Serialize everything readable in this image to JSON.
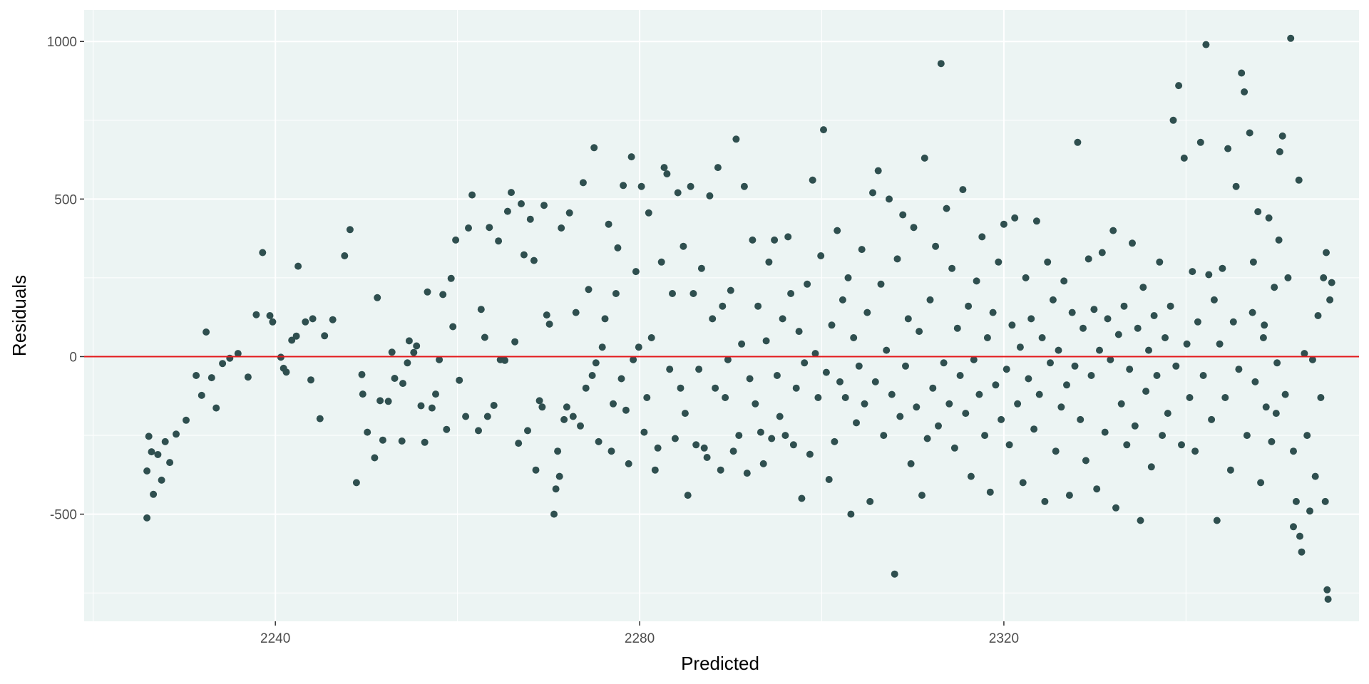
{
  "chart_data": {
    "type": "scatter",
    "title": "",
    "xlabel": "Predicted",
    "ylabel": "Residuals",
    "xlim": [
      2219,
      2359
    ],
    "ylim": [
      -840,
      1100
    ],
    "x_ticks": [
      2240,
      2280,
      2320
    ],
    "y_ticks": [
      -500,
      0,
      500,
      1000
    ],
    "x_tick_labels": [
      "2240",
      "2280",
      "2320"
    ],
    "y_tick_labels": [
      "-500",
      "0",
      "500",
      "1000"
    ],
    "grid": true,
    "reference_line": {
      "y": 0,
      "color": "#e31a1c"
    },
    "colors": {
      "panel": "#ecf4f3",
      "grid": "#ffffff",
      "point": "#2f4f4f",
      "reference": "#e31a1c"
    },
    "points": [
      [
        2225.9,
        -512
      ],
      [
        2225.9,
        -363
      ],
      [
        2226.1,
        -253
      ],
      [
        2226.4,
        -302
      ],
      [
        2226.6,
        -437
      ],
      [
        2227.1,
        -311
      ],
      [
        2227.5,
        -392
      ],
      [
        2227.9,
        -270
      ],
      [
        2228.4,
        -336
      ],
      [
        2229.1,
        -246
      ],
      [
        2230.2,
        -202
      ],
      [
        2231.3,
        -60
      ],
      [
        2231.9,
        -123
      ],
      [
        2232.4,
        78
      ],
      [
        2233.0,
        -67
      ],
      [
        2233.5,
        -163
      ],
      [
        2234.2,
        -22
      ],
      [
        2235.0,
        -5
      ],
      [
        2235.9,
        10
      ],
      [
        2237.0,
        -65
      ],
      [
        2237.9,
        133
      ],
      [
        2238.6,
        330
      ],
      [
        2239.4,
        130
      ],
      [
        2239.7,
        110
      ],
      [
        2240.6,
        -2
      ],
      [
        2240.9,
        -37
      ],
      [
        2241.2,
        -49
      ],
      [
        2241.8,
        52
      ],
      [
        2242.3,
        65
      ],
      [
        2242.5,
        287
      ],
      [
        2243.3,
        110
      ],
      [
        2243.9,
        -74
      ],
      [
        2244.1,
        120
      ],
      [
        2244.9,
        -197
      ],
      [
        2245.4,
        66
      ],
      [
        2246.3,
        117
      ],
      [
        2247.6,
        320
      ],
      [
        2248.2,
        403
      ],
      [
        2248.9,
        -400
      ],
      [
        2249.5,
        -57
      ],
      [
        2249.6,
        -119
      ],
      [
        2250.1,
        -240
      ],
      [
        2250.9,
        -321
      ],
      [
        2251.2,
        187
      ],
      [
        2251.5,
        -140
      ],
      [
        2251.8,
        -265
      ],
      [
        2252.4,
        -142
      ],
      [
        2252.8,
        14
      ],
      [
        2253.1,
        -69
      ],
      [
        2253.9,
        -268
      ],
      [
        2254.0,
        -85
      ],
      [
        2254.5,
        -20
      ],
      [
        2254.7,
        50
      ],
      [
        2255.2,
        13
      ],
      [
        2255.5,
        34
      ],
      [
        2256.0,
        -156
      ],
      [
        2256.4,
        -272
      ],
      [
        2256.7,
        205
      ],
      [
        2257.2,
        -163
      ],
      [
        2257.6,
        -119
      ],
      [
        2258.0,
        -10
      ],
      [
        2258.4,
        197
      ],
      [
        2258.8,
        -231
      ],
      [
        2259.3,
        248
      ],
      [
        2259.5,
        95
      ],
      [
        2259.8,
        370
      ],
      [
        2260.2,
        -75
      ],
      [
        2260.9,
        -190
      ],
      [
        2261.2,
        408
      ],
      [
        2261.6,
        513
      ],
      [
        2262.3,
        -235
      ],
      [
        2262.6,
        150
      ],
      [
        2263.0,
        61
      ],
      [
        2263.3,
        -190
      ],
      [
        2263.5,
        410
      ],
      [
        2264.0,
        -155
      ],
      [
        2264.5,
        367
      ],
      [
        2264.7,
        -10
      ],
      [
        2265.2,
        -12
      ],
      [
        2265.5,
        461
      ],
      [
        2265.9,
        521
      ],
      [
        2266.3,
        47
      ],
      [
        2266.7,
        -275
      ],
      [
        2267.0,
        485
      ],
      [
        2267.3,
        323
      ],
      [
        2267.7,
        -235
      ],
      [
        2268.0,
        436
      ],
      [
        2268.4,
        305
      ],
      [
        2268.6,
        -360
      ],
      [
        2269.0,
        -140
      ],
      [
        2269.3,
        -160
      ],
      [
        2269.5,
        480
      ],
      [
        2269.8,
        132
      ],
      [
        2270.1,
        103
      ],
      [
        2270.6,
        -500
      ],
      [
        2270.8,
        -420
      ],
      [
        2271.0,
        -300
      ],
      [
        2271.2,
        -380
      ],
      [
        2271.4,
        408
      ],
      [
        2271.7,
        -200
      ],
      [
        2272.0,
        -160
      ],
      [
        2272.3,
        456
      ],
      [
        2272.7,
        -190
      ],
      [
        2273.0,
        140
      ],
      [
        2273.5,
        -220
      ],
      [
        2273.8,
        552
      ],
      [
        2274.1,
        -100
      ],
      [
        2274.4,
        213
      ],
      [
        2274.8,
        -60
      ],
      [
        2275.0,
        663
      ],
      [
        2275.2,
        -20
      ],
      [
        2275.5,
        -270
      ],
      [
        2275.9,
        30
      ],
      [
        2276.2,
        120
      ],
      [
        2276.6,
        420
      ],
      [
        2276.9,
        -300
      ],
      [
        2277.1,
        -150
      ],
      [
        2277.4,
        200
      ],
      [
        2277.6,
        345
      ],
      [
        2278.0,
        -70
      ],
      [
        2278.2,
        543
      ],
      [
        2278.5,
        -170
      ],
      [
        2278.8,
        -340
      ],
      [
        2279.1,
        634
      ],
      [
        2279.3,
        -10
      ],
      [
        2279.6,
        270
      ],
      [
        2279.9,
        30
      ],
      [
        2280.2,
        540
      ],
      [
        2280.5,
        -240
      ],
      [
        2280.8,
        -130
      ],
      [
        2281.0,
        456
      ],
      [
        2281.3,
        60
      ],
      [
        2281.7,
        -360
      ],
      [
        2282.0,
        -290
      ],
      [
        2282.4,
        300
      ],
      [
        2282.7,
        600
      ],
      [
        2283.0,
        580
      ],
      [
        2283.3,
        -40
      ],
      [
        2283.6,
        200
      ],
      [
        2283.9,
        -260
      ],
      [
        2284.2,
        520
      ],
      [
        2284.5,
        -100
      ],
      [
        2284.8,
        350
      ],
      [
        2285.0,
        -180
      ],
      [
        2285.3,
        -440
      ],
      [
        2285.6,
        540
      ],
      [
        2285.9,
        200
      ],
      [
        2286.2,
        -280
      ],
      [
        2286.5,
        -40
      ],
      [
        2286.8,
        280
      ],
      [
        2287.1,
        -290
      ],
      [
        2287.4,
        -320
      ],
      [
        2287.7,
        510
      ],
      [
        2288.0,
        120
      ],
      [
        2288.3,
        -100
      ],
      [
        2288.6,
        600
      ],
      [
        2288.9,
        -360
      ],
      [
        2289.1,
        160
      ],
      [
        2289.4,
        -130
      ],
      [
        2289.7,
        -10
      ],
      [
        2290.0,
        210
      ],
      [
        2290.3,
        -300
      ],
      [
        2290.6,
        690
      ],
      [
        2290.9,
        -250
      ],
      [
        2291.2,
        40
      ],
      [
        2291.5,
        540
      ],
      [
        2291.8,
        -370
      ],
      [
        2292.1,
        -70
      ],
      [
        2292.4,
        370
      ],
      [
        2292.7,
        -150
      ],
      [
        2293.0,
        160
      ],
      [
        2293.3,
        -240
      ],
      [
        2293.6,
        -340
      ],
      [
        2293.9,
        50
      ],
      [
        2294.2,
        300
      ],
      [
        2294.5,
        -260
      ],
      [
        2294.8,
        370
      ],
      [
        2295.1,
        -60
      ],
      [
        2295.4,
        -190
      ],
      [
        2295.7,
        120
      ],
      [
        2296.0,
        -250
      ],
      [
        2296.3,
        380
      ],
      [
        2296.6,
        200
      ],
      [
        2296.9,
        -280
      ],
      [
        2297.2,
        -100
      ],
      [
        2297.5,
        80
      ],
      [
        2297.8,
        -450
      ],
      [
        2298.1,
        -20
      ],
      [
        2298.4,
        230
      ],
      [
        2298.7,
        -310
      ],
      [
        2299.0,
        560
      ],
      [
        2299.3,
        10
      ],
      [
        2299.6,
        -130
      ],
      [
        2299.9,
        320
      ],
      [
        2300.2,
        720
      ],
      [
        2300.5,
        -50
      ],
      [
        2300.8,
        -390
      ],
      [
        2301.1,
        100
      ],
      [
        2301.4,
        -270
      ],
      [
        2301.7,
        400
      ],
      [
        2302.0,
        -80
      ],
      [
        2302.3,
        180
      ],
      [
        2302.6,
        -130
      ],
      [
        2302.9,
        250
      ],
      [
        2303.2,
        -500
      ],
      [
        2303.5,
        60
      ],
      [
        2303.8,
        -210
      ],
      [
        2304.1,
        -30
      ],
      [
        2304.4,
        340
      ],
      [
        2304.7,
        -150
      ],
      [
        2305.0,
        140
      ],
      [
        2305.3,
        -460
      ],
      [
        2305.6,
        520
      ],
      [
        2305.9,
        -80
      ],
      [
        2306.2,
        590
      ],
      [
        2306.5,
        230
      ],
      [
        2306.8,
        -250
      ],
      [
        2307.1,
        20
      ],
      [
        2307.4,
        500
      ],
      [
        2307.7,
        -120
      ],
      [
        2308.0,
        -690
      ],
      [
        2308.3,
        310
      ],
      [
        2308.6,
        -190
      ],
      [
        2308.9,
        450
      ],
      [
        2309.2,
        -30
      ],
      [
        2309.5,
        120
      ],
      [
        2309.8,
        -340
      ],
      [
        2310.1,
        410
      ],
      [
        2310.4,
        -160
      ],
      [
        2310.7,
        80
      ],
      [
        2311.0,
        -440
      ],
      [
        2311.3,
        630
      ],
      [
        2311.6,
        -260
      ],
      [
        2311.9,
        180
      ],
      [
        2312.2,
        -100
      ],
      [
        2312.5,
        350
      ],
      [
        2312.8,
        -220
      ],
      [
        2313.1,
        930
      ],
      [
        2313.4,
        -20
      ],
      [
        2313.7,
        470
      ],
      [
        2314.0,
        -150
      ],
      [
        2314.3,
        280
      ],
      [
        2314.6,
        -290
      ],
      [
        2314.9,
        90
      ],
      [
        2315.2,
        -60
      ],
      [
        2315.5,
        530
      ],
      [
        2315.8,
        -180
      ],
      [
        2316.1,
        160
      ],
      [
        2316.4,
        -380
      ],
      [
        2316.7,
        -10
      ],
      [
        2317.0,
        240
      ],
      [
        2317.3,
        -120
      ],
      [
        2317.6,
        380
      ],
      [
        2317.9,
        -250
      ],
      [
        2318.2,
        60
      ],
      [
        2318.5,
        -430
      ],
      [
        2318.8,
        140
      ],
      [
        2319.1,
        -90
      ],
      [
        2319.4,
        300
      ],
      [
        2319.7,
        -200
      ],
      [
        2320.0,
        420
      ],
      [
        2320.3,
        -40
      ],
      [
        2320.6,
        -280
      ],
      [
        2320.9,
        100
      ],
      [
        2321.2,
        440
      ],
      [
        2321.5,
        -150
      ],
      [
        2321.8,
        30
      ],
      [
        2322.1,
        -400
      ],
      [
        2322.4,
        250
      ],
      [
        2322.7,
        -70
      ],
      [
        2323.0,
        120
      ],
      [
        2323.3,
        -230
      ],
      [
        2323.6,
        430
      ],
      [
        2323.9,
        -120
      ],
      [
        2324.2,
        60
      ],
      [
        2324.5,
        -460
      ],
      [
        2324.8,
        300
      ],
      [
        2325.1,
        -20
      ],
      [
        2325.4,
        180
      ],
      [
        2325.7,
        -300
      ],
      [
        2326.0,
        20
      ],
      [
        2326.3,
        -160
      ],
      [
        2326.6,
        240
      ],
      [
        2326.9,
        -90
      ],
      [
        2327.2,
        -440
      ],
      [
        2327.5,
        140
      ],
      [
        2327.8,
        -30
      ],
      [
        2328.1,
        680
      ],
      [
        2328.4,
        -200
      ],
      [
        2328.7,
        90
      ],
      [
        2329.0,
        -330
      ],
      [
        2329.3,
        310
      ],
      [
        2329.6,
        -60
      ],
      [
        2329.9,
        150
      ],
      [
        2330.2,
        -420
      ],
      [
        2330.5,
        20
      ],
      [
        2330.8,
        330
      ],
      [
        2331.1,
        -240
      ],
      [
        2331.4,
        120
      ],
      [
        2331.7,
        -10
      ],
      [
        2332.0,
        400
      ],
      [
        2332.3,
        -480
      ],
      [
        2332.6,
        70
      ],
      [
        2332.9,
        -150
      ],
      [
        2333.2,
        160
      ],
      [
        2333.5,
        -280
      ],
      [
        2333.8,
        -40
      ],
      [
        2334.1,
        360
      ],
      [
        2334.4,
        -220
      ],
      [
        2334.7,
        90
      ],
      [
        2335.0,
        -520
      ],
      [
        2335.3,
        220
      ],
      [
        2335.6,
        -110
      ],
      [
        2335.9,
        20
      ],
      [
        2336.2,
        -350
      ],
      [
        2336.5,
        130
      ],
      [
        2336.8,
        -60
      ],
      [
        2337.1,
        300
      ],
      [
        2337.4,
        -250
      ],
      [
        2337.7,
        60
      ],
      [
        2338.0,
        -180
      ],
      [
        2338.3,
        160
      ],
      [
        2338.6,
        750
      ],
      [
        2338.9,
        -30
      ],
      [
        2339.2,
        860
      ],
      [
        2339.5,
        -280
      ],
      [
        2339.8,
        630
      ],
      [
        2340.1,
        40
      ],
      [
        2340.4,
        -130
      ],
      [
        2340.7,
        270
      ],
      [
        2341.0,
        -300
      ],
      [
        2341.3,
        110
      ],
      [
        2341.6,
        680
      ],
      [
        2341.9,
        -60
      ],
      [
        2342.2,
        990
      ],
      [
        2342.5,
        260
      ],
      [
        2342.8,
        -200
      ],
      [
        2343.1,
        180
      ],
      [
        2343.4,
        -520
      ],
      [
        2343.7,
        40
      ],
      [
        2344.0,
        280
      ],
      [
        2344.3,
        -130
      ],
      [
        2344.6,
        660
      ],
      [
        2344.9,
        -360
      ],
      [
        2345.2,
        110
      ],
      [
        2345.5,
        540
      ],
      [
        2345.8,
        -40
      ],
      [
        2346.1,
        900
      ],
      [
        2346.4,
        840
      ],
      [
        2346.7,
        -250
      ],
      [
        2347.0,
        710
      ],
      [
        2347.3,
        140
      ],
      [
        2347.6,
        -80
      ],
      [
        2347.9,
        460
      ],
      [
        2348.2,
        -400
      ],
      [
        2348.5,
        60
      ],
      [
        2348.8,
        -160
      ],
      [
        2349.1,
        440
      ],
      [
        2349.4,
        -270
      ],
      [
        2349.7,
        220
      ],
      [
        2350.0,
        -20
      ],
      [
        2350.3,
        650
      ],
      [
        2350.6,
        700
      ],
      [
        2350.9,
        -120
      ],
      [
        2351.2,
        250
      ],
      [
        2351.5,
        1010
      ],
      [
        2351.8,
        -300
      ],
      [
        2352.1,
        -460
      ],
      [
        2352.4,
        560
      ],
      [
        2352.7,
        -620
      ],
      [
        2353.0,
        10
      ],
      [
        2353.3,
        -250
      ],
      [
        2353.6,
        -490
      ],
      [
        2353.9,
        -10
      ],
      [
        2354.2,
        -380
      ],
      [
        2354.5,
        130
      ],
      [
        2354.8,
        -130
      ],
      [
        2355.1,
        250
      ],
      [
        2355.4,
        330
      ],
      [
        2355.5,
        -740
      ],
      [
        2355.6,
        -770
      ],
      [
        2355.8,
        180
      ],
      [
        2356.0,
        235
      ],
      [
        2355.3,
        -460
      ],
      [
        2351.8,
        -540
      ],
      [
        2352.5,
        -570
      ],
      [
        2350.2,
        370
      ],
      [
        2349.9,
        -180
      ],
      [
        2348.6,
        100
      ],
      [
        2347.4,
        300
      ]
    ]
  }
}
